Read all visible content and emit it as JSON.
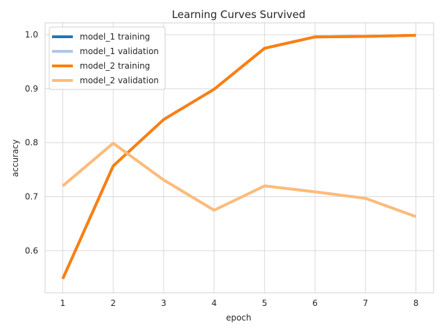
{
  "chart_data": {
    "type": "line",
    "title": "Learning Curves Survived",
    "xlabel": "epoch",
    "ylabel": "accuracy",
    "x": [
      1,
      2,
      3,
      4,
      5,
      6,
      7,
      8
    ],
    "xlim": [
      0.65,
      8.35
    ],
    "ylim": [
      0.522,
      1.022
    ],
    "xticks": [
      1,
      2,
      3,
      4,
      5,
      6,
      7,
      8
    ],
    "yticks": [
      0.6,
      0.7,
      0.8,
      0.9,
      1.0
    ],
    "ytick_labels": [
      "0.6",
      "0.7",
      "0.8",
      "0.9",
      "1.0"
    ],
    "grid": true,
    "legend_position": "top-left",
    "series": [
      {
        "name": "model_1 training",
        "color": "#1f77b4",
        "values": [
          0.548,
          0.757,
          0.843,
          0.899,
          0.975,
          0.996,
          0.997,
          0.999
        ]
      },
      {
        "name": "model_1 validation",
        "color": "#aec7e8",
        "values": [
          0.72,
          0.799,
          0.731,
          0.675,
          0.72,
          0.709,
          0.697,
          0.663
        ]
      },
      {
        "name": "model_2 training",
        "color": "#ff7f0e",
        "values": [
          0.548,
          0.757,
          0.843,
          0.899,
          0.975,
          0.996,
          0.997,
          0.999
        ]
      },
      {
        "name": "model_2 validation",
        "color": "#ffbb78",
        "values": [
          0.72,
          0.799,
          0.731,
          0.675,
          0.72,
          0.709,
          0.697,
          0.663
        ]
      }
    ]
  }
}
